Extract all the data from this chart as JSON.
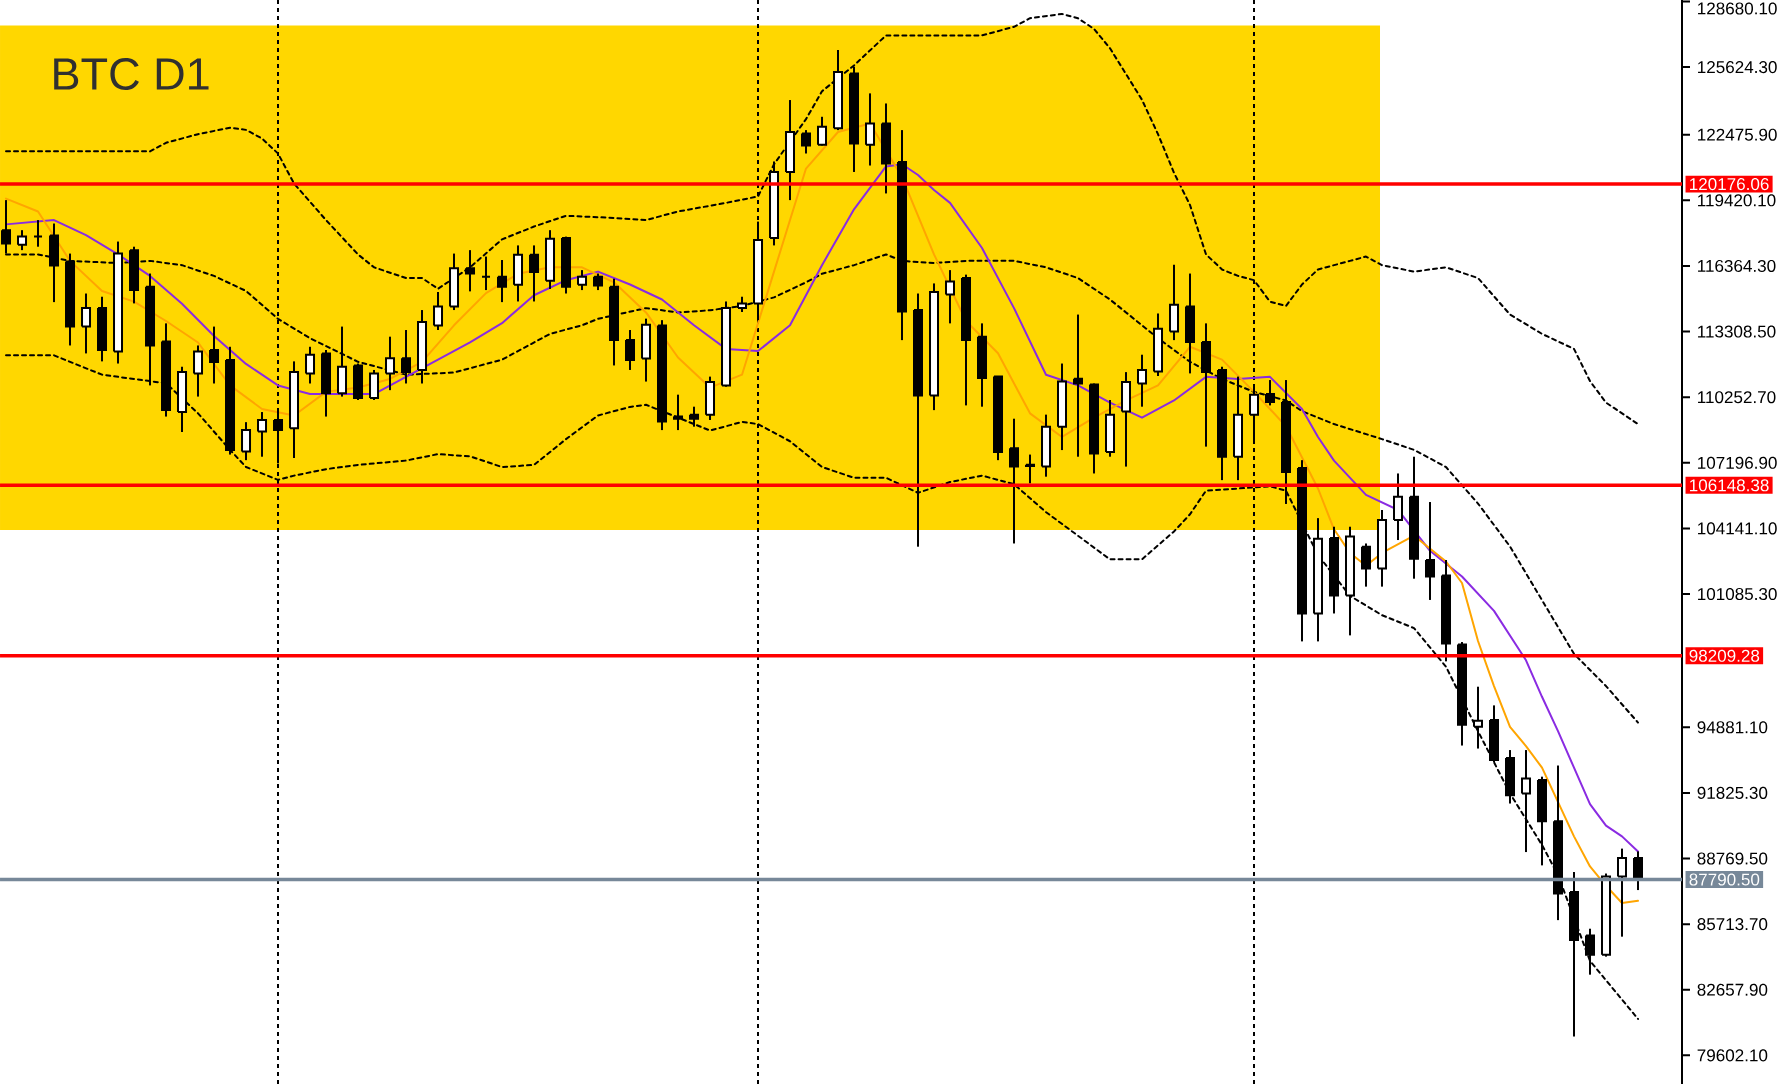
{
  "chart_data": {
    "type": "candlestick",
    "title": "BTC D1",
    "categories": [
      null,
      null,
      null,
      null,
      null,
      null,
      null,
      null,
      null,
      null,
      null,
      null,
      null,
      null,
      null,
      null,
      null,
      null,
      null,
      null,
      null,
      null,
      null,
      null,
      null,
      null,
      null,
      null,
      null,
      null,
      null,
      null,
      null,
      null,
      null,
      null,
      null,
      null,
      null,
      null,
      null,
      null,
      null,
      null,
      null,
      null,
      null,
      null,
      null,
      null,
      null,
      null,
      null,
      null,
      null,
      null,
      null,
      null,
      null,
      null,
      null,
      null,
      null,
      null,
      null,
      null,
      null,
      null,
      null,
      null,
      null,
      null,
      null,
      null,
      null,
      null,
      null,
      null,
      null,
      null,
      null,
      null,
      null,
      null,
      null,
      null,
      null,
      null,
      null,
      null,
      null,
      null,
      null,
      null,
      null,
      null,
      null,
      null,
      null,
      null,
      null,
      null,
      null
    ],
    "ohlc": [
      [
        118030,
        119430,
        116940,
        117410
      ],
      [
        117350,
        118030,
        117100,
        117730
      ],
      [
        117730,
        118500,
        117260,
        117730
      ],
      [
        117780,
        118340,
        114680,
        116390
      ],
      [
        116570,
        116940,
        112660,
        113540
      ],
      [
        113540,
        115080,
        112290,
        114400
      ],
      [
        114400,
        114930,
        111920,
        112450
      ],
      [
        112380,
        117500,
        111820,
        116940
      ],
      [
        117100,
        117260,
        114620,
        115240
      ],
      [
        115400,
        116010,
        110800,
        112660
      ],
      [
        112850,
        113690,
        109350,
        109650
      ],
      [
        109560,
        111670,
        108630,
        111420
      ],
      [
        111360,
        112660,
        110280,
        112380
      ],
      [
        112450,
        113540,
        110890,
        111890
      ],
      [
        111980,
        112600,
        107580,
        107790
      ],
      [
        107720,
        109090,
        107320,
        108720
      ],
      [
        108660,
        109560,
        107480,
        109190
      ],
      [
        109190,
        109650,
        107170,
        108720
      ],
      [
        108810,
        111920,
        107420,
        111420
      ],
      [
        111360,
        112600,
        110890,
        112230
      ],
      [
        112290,
        112450,
        109350,
        110430
      ],
      [
        110430,
        113540,
        110280,
        111670
      ],
      [
        111730,
        111820,
        110120,
        110210
      ],
      [
        110210,
        111520,
        110120,
        111360
      ],
      [
        111360,
        113070,
        110580,
        112070
      ],
      [
        112070,
        113380,
        110890,
        111420
      ],
      [
        111520,
        114310,
        110890,
        113750
      ],
      [
        113590,
        115150,
        113380,
        114470
      ],
      [
        114470,
        116940,
        114310,
        116260
      ],
      [
        116260,
        117100,
        115180,
        116010
      ],
      [
        115860,
        116800,
        115240,
        115860
      ],
      [
        115860,
        116640,
        114680,
        115400
      ],
      [
        115490,
        117320,
        114710,
        116890
      ],
      [
        116890,
        117320,
        114710,
        116080
      ],
      [
        115680,
        118030,
        115290,
        117630
      ],
      [
        117660,
        117730,
        115080,
        115400
      ],
      [
        115490,
        116170,
        115240,
        115860
      ],
      [
        115860,
        116010,
        115240,
        115450
      ],
      [
        115400,
        115770,
        111730,
        112910
      ],
      [
        112910,
        113380,
        111520,
        111980
      ],
      [
        112050,
        113910,
        110980,
        113630
      ],
      [
        113590,
        113840,
        108720,
        109120
      ],
      [
        109350,
        110370,
        108720,
        109250
      ],
      [
        109440,
        109810,
        108880,
        109250
      ],
      [
        109440,
        111210,
        109190,
        110960
      ],
      [
        110800,
        114710,
        110740,
        114400
      ],
      [
        114400,
        114930,
        114220,
        114620
      ],
      [
        114620,
        118430,
        113840,
        117570
      ],
      [
        117660,
        121230,
        117320,
        120740
      ],
      [
        120740,
        124090,
        119430,
        122600
      ],
      [
        122530,
        122690,
        121600,
        121970
      ],
      [
        122010,
        123310,
        121970,
        122850
      ],
      [
        122780,
        126420,
        122690,
        125390
      ],
      [
        125330,
        125640,
        120740,
        122070
      ],
      [
        122010,
        124400,
        121040,
        123000
      ],
      [
        123000,
        123930,
        119740,
        121140
      ],
      [
        121200,
        122690,
        112910,
        114240
      ],
      [
        114310,
        115080,
        103290,
        110330
      ],
      [
        110330,
        115550,
        109650,
        115150
      ],
      [
        115030,
        116170,
        113690,
        115640
      ],
      [
        115800,
        115960,
        109870,
        112910
      ],
      [
        113070,
        113690,
        109810,
        111140
      ],
      [
        111210,
        111240,
        107320,
        107700
      ],
      [
        107880,
        109250,
        103440,
        107020
      ],
      [
        107110,
        107580,
        106240,
        107050
      ],
      [
        107020,
        109440,
        106550,
        108880
      ],
      [
        108880,
        111820,
        107790,
        110980
      ],
      [
        111110,
        114100,
        107480,
        110890
      ],
      [
        110840,
        110890,
        106700,
        107630
      ],
      [
        107700,
        110120,
        107480,
        109440
      ],
      [
        109590,
        111420,
        107020,
        110960
      ],
      [
        110890,
        112230,
        109810,
        111520
      ],
      [
        111450,
        114150,
        111240,
        113440
      ],
      [
        113310,
        116420,
        112910,
        114560
      ],
      [
        114470,
        116010,
        111360,
        112820
      ],
      [
        112820,
        113690,
        107950,
        111420
      ],
      [
        111520,
        111670,
        106390,
        107480
      ],
      [
        107480,
        111210,
        106390,
        109440
      ],
      [
        109440,
        110740,
        108100,
        110370
      ],
      [
        110400,
        111050,
        109870,
        110030
      ],
      [
        110030,
        111050,
        105280,
        106770
      ],
      [
        106950,
        107320,
        98880,
        100180
      ],
      [
        100180,
        104620,
        98880,
        103660
      ],
      [
        103690,
        104220,
        100180,
        101020
      ],
      [
        101020,
        104220,
        99160,
        103760
      ],
      [
        103290,
        103440,
        101430,
        102270
      ],
      [
        102270,
        105000,
        101430,
        104530
      ],
      [
        104530,
        106700,
        103600,
        105620
      ],
      [
        105620,
        107480,
        101800,
        102730
      ],
      [
        102670,
        105370,
        100810,
        101900
      ],
      [
        101950,
        102670,
        97950,
        98780
      ],
      [
        98730,
        98850,
        94030,
        95000
      ],
      [
        94910,
        96770,
        93890,
        95190
      ],
      [
        95220,
        95900,
        93260,
        93360
      ],
      [
        93450,
        93820,
        91330,
        91710
      ],
      [
        91800,
        93820,
        89070,
        92490
      ],
      [
        92420,
        92580,
        88450,
        90500
      ],
      [
        90500,
        93100,
        85900,
        87140
      ],
      [
        87210,
        88140,
        80480,
        84970
      ],
      [
        85190,
        85500,
        83360,
        84290
      ],
      [
        84290,
        88070,
        84200,
        87930
      ],
      [
        87930,
        89230,
        85130,
        88790
      ],
      [
        88790,
        89100,
        87300,
        87790.5
      ]
    ],
    "series": [
      {
        "type": "line",
        "color": "#000000",
        "line_style": "dashed",
        "values": [
          121700,
          null,
          null,
          null,
          null,
          121700,
          null,
          null,
          null,
          121700,
          122100,
          null,
          122500,
          null,
          122800,
          122700,
          122300,
          121600,
          120200,
          null,
          118500,
          null,
          116900,
          116300,
          null,
          115800,
          115800,
          115300,
          null,
          116300,
          null,
          117600,
          null,
          118200,
          null,
          118700,
          null,
          null,
          118600,
          null,
          118500,
          null,
          118900,
          null,
          null,
          119300,
          null,
          119600,
          121100,
          null,
          123200,
          124500,
          null,
          125700,
          null,
          127100,
          null,
          null,
          127100,
          null,
          null,
          127100,
          null,
          127500,
          127900,
          null,
          128100,
          127900,
          127400,
          126500,
          125300,
          124100,
          122500,
          120700,
          119200,
          116900,
          116200,
          115900,
          115700,
          114700,
          114500,
          115500,
          116200,
          null,
          116600,
          116800,
          116400,
          null,
          116100,
          null,
          116300,
          null,
          115800,
          null,
          114100,
          null,
          113200,
          null,
          112500,
          111000,
          110000,
          null,
          109000
        ]
      },
      {
        "type": "line",
        "color": "#000000",
        "line_style": "dashed",
        "values": [
          116900,
          null,
          116900,
          null,
          116600,
          null,
          null,
          116500,
          null,
          116600,
          null,
          116400,
          null,
          115900,
          null,
          115200,
          null,
          113900,
          null,
          113000,
          null,
          null,
          111900,
          null,
          null,
          111300,
          null,
          null,
          111400,
          null,
          null,
          112000,
          null,
          null,
          113200,
          null,
          113600,
          113900,
          null,
          null,
          114400,
          null,
          114200,
          null,
          114300,
          null,
          114500,
          null,
          114900,
          null,
          115600,
          116000,
          null,
          116400,
          null,
          116900,
          116600,
          null,
          116500,
          null,
          116600,
          null,
          null,
          116600,
          null,
          116300,
          null,
          115800,
          null,
          114800,
          114200,
          null,
          113000,
          null,
          111900,
          null,
          111100,
          null,
          110500,
          null,
          110100,
          109600,
          null,
          109000,
          null,
          null,
          108300,
          null,
          107800,
          null,
          107000,
          null,
          105300,
          null,
          103300,
          null,
          100800,
          null,
          98300,
          null,
          96800,
          null,
          95100
        ]
      },
      {
        "type": "line",
        "color": "#000000",
        "line_style": "dashed",
        "values": [
          112200,
          null,
          null,
          112200,
          null,
          null,
          111300,
          null,
          null,
          null,
          110900,
          null,
          109500,
          null,
          107800,
          107000,
          null,
          106400,
          106600,
          null,
          106900,
          null,
          107100,
          null,
          null,
          107300,
          null,
          107600,
          null,
          107500,
          null,
          107000,
          null,
          107100,
          null,
          108300,
          null,
          109400,
          null,
          109800,
          109900,
          null,
          109300,
          null,
          108700,
          null,
          109100,
          109000,
          null,
          108200,
          null,
          107000,
          null,
          106500,
          null,
          106500,
          null,
          105800,
          null,
          106300,
          null,
          106600,
          null,
          106200,
          null,
          104900,
          null,
          103800,
          null,
          102700,
          null,
          102700,
          null,
          104000,
          104800,
          105900,
          null,
          106000,
          null,
          106100,
          105900,
          null,
          102900,
          null,
          101000,
          null,
          100100,
          null,
          99500,
          null,
          97700,
          null,
          94700,
          null,
          91800,
          null,
          89400,
          88000,
          null,
          84000,
          83100,
          null,
          81300
        ]
      },
      {
        "type": "line",
        "color": "#8a2be2",
        "values": [
          118300,
          null,
          null,
          118500,
          null,
          117800,
          null,
          116900,
          null,
          115900,
          null,
          114600,
          null,
          113100,
          null,
          111800,
          null,
          110800,
          null,
          110400,
          null,
          110400,
          null,
          110400,
          null,
          111200,
          null,
          112000,
          null,
          112800,
          null,
          113700,
          null,
          115000,
          null,
          115700,
          null,
          116100,
          null,
          115500,
          null,
          114800,
          null,
          113600,
          null,
          112500,
          null,
          112400,
          null,
          113600,
          null,
          116400,
          null,
          119000,
          null,
          121000,
          121100,
          120600,
          119900,
          119300,
          null,
          117200,
          null,
          114400,
          null,
          111300,
          null,
          110800,
          null,
          110000,
          null,
          109300,
          null,
          110100,
          null,
          111200,
          null,
          111100,
          null,
          111200,
          null,
          109700,
          108400,
          107300,
          null,
          105700,
          null,
          105000,
          null,
          103100,
          null,
          101900,
          null,
          100300,
          null,
          98000,
          96300,
          94700,
          93000,
          91300,
          90300,
          89800,
          89100
        ]
      },
      {
        "type": "line",
        "color": "#ffa500",
        "values": [
          119500,
          null,
          118900,
          null,
          116600,
          null,
          115200,
          null,
          114700,
          null,
          113800,
          null,
          112800,
          null,
          110800,
          null,
          109700,
          null,
          109400,
          null,
          110500,
          null,
          110700,
          null,
          111100,
          null,
          111900,
          null,
          113600,
          null,
          115100,
          null,
          116000,
          null,
          116300,
          null,
          116300,
          null,
          115600,
          null,
          114200,
          null,
          112100,
          null,
          110700,
          null,
          111300,
          null,
          116100,
          null,
          120900,
          null,
          122600,
          null,
          123000,
          null,
          120500,
          null,
          116900,
          null,
          113800,
          null,
          112300,
          null,
          109500,
          null,
          108400,
          null,
          109300,
          null,
          110100,
          null,
          110800,
          null,
          112600,
          null,
          112000,
          null,
          110500,
          null,
          108900,
          null,
          106000,
          104100,
          103000,
          102400,
          103000,
          null,
          103800,
          null,
          102600,
          101600,
          98900,
          96800,
          94900,
          94000,
          93000,
          91400,
          89800,
          88400,
          87500,
          86700,
          86800
        ]
      }
    ],
    "ylim": [
      78270,
      128750
    ],
    "yticks": [
      {
        "value": 128680.1,
        "label": "128680.10"
      },
      {
        "value": 125624.3,
        "label": "125624.30"
      },
      {
        "value": 122475.9,
        "label": "122475.90"
      },
      {
        "value": 119420.1,
        "label": "119420.10"
      },
      {
        "value": 116364.3,
        "label": "116364.30"
      },
      {
        "value": 113308.5,
        "label": "113308.50"
      },
      {
        "value": 110252.7,
        "label": "110252.70"
      },
      {
        "value": 107196.9,
        "label": "107196.90"
      },
      {
        "value": 104141.1,
        "label": "104141.10"
      },
      {
        "value": 101085.3,
        "label": "101085.30"
      },
      {
        "value": 94881.1,
        "label": "94881.10"
      },
      {
        "value": 91825.3,
        "label": "91825.30"
      },
      {
        "value": 88769.5,
        "label": "88769.50"
      },
      {
        "value": 85713.7,
        "label": "85713.70"
      },
      {
        "value": 82657.9,
        "label": "82657.90"
      },
      {
        "value": 79602.1,
        "label": "79602.10"
      }
    ],
    "tick_labels": "y",
    "grid": "x",
    "bands": [
      {
        "axis": "y",
        "from": 104070,
        "to": 127560,
        "color": "#ffd700"
      }
    ],
    "ref_lines": [
      {
        "axis": "y",
        "value": 120176.06,
        "label": "120176.06",
        "color": "#ff0000"
      },
      {
        "axis": "y",
        "value": 106148.38,
        "label": "106148.38",
        "color": "#ff0000"
      },
      {
        "axis": "y",
        "value": 98209.28,
        "label": "98209.28",
        "color": "#ff0000"
      },
      {
        "axis": "y",
        "value": 87790.5,
        "label": "87790.50",
        "color": "#778899"
      }
    ]
  }
}
